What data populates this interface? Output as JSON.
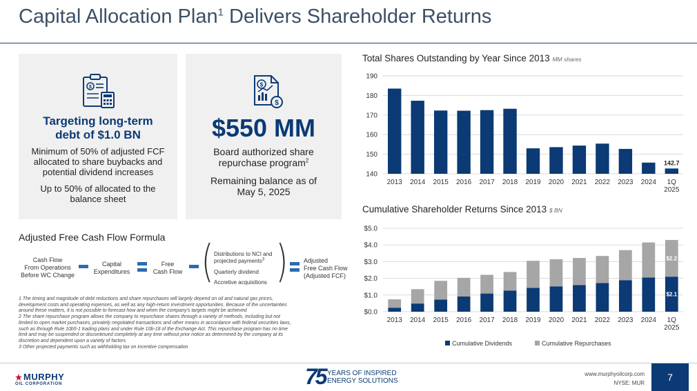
{
  "header": {
    "title_main": "Capital Allocation Plan",
    "title_sup": "1",
    "title_rest": " Delivers Shareholder Returns"
  },
  "left_panel": {
    "icon": "clipboard-calculator-icon",
    "heading_line1": "Targeting long-term",
    "heading_line2": "debt of $1.0 BN",
    "body1_line1": "Minimum of 50% of adjusted FCF",
    "body1_line2": "allocated to share buybacks and",
    "body1_line3": "potential dividend increases",
    "body2_line1": "Up to 50% of allocated to the",
    "body2_line2": "balance sheet"
  },
  "mid_panel": {
    "icon": "money-document-chart-icon",
    "amount": "$550 MM",
    "body1_line1": "Board authorized share",
    "body1_line2": "repurchase program",
    "body1_sup": "2",
    "body2_line1": "Remaining balance as of",
    "body2_line2": "May 5, 2025"
  },
  "formula": {
    "heading": "Adjusted Free Cash Flow Formula",
    "term1_line1": "Cash Flow",
    "term1_line2": "From Operations",
    "term1_line3": "Before WC Change",
    "term2_line1": "Capital",
    "term2_line2": "Expenditures",
    "term3_line1": "Free",
    "term3_line2": "Cash Flow",
    "paren_item1_line1": "Distributions to NCI and",
    "paren_item1_line2": "projected payments",
    "paren_item1_sup": "3",
    "paren_item2": "Quarterly dividend",
    "paren_item3": "Accretive acquisitions",
    "result_line1": "Adjusted",
    "result_line2": "Free Cash Flow",
    "result_line3": "(Adjusted FCF)",
    "accent_color": "#2b6cb0"
  },
  "footnotes": {
    "line1": "1 The timing and magnitude of debt reductions and share repurchases will largely depend on oil and natural gas prices,",
    "line2": "development costs and operating expenses, as well as any high-return investment opportunities. Because of the uncertainties",
    "line3": "around these matters, it is not possible to forecast how and when the company's targets might be achieved",
    "line4": "2 The share repurchase program allows the company to repurchase shares through a variety of methods, including but not",
    "line5": "limited to open market purchases, privately negotiated transactions and other means in accordance with federal securities laws,",
    "line6": "such as through Rule 10b5-1 trading plans and under Rule 10b-18 of the Exchange Act. This repurchase program has no time",
    "line7": "limit and may be suspended or discontinued completely at any time without prior notice as determined by the company at its",
    "line8": "discretion and dependent upon a variety of factors",
    "line9": "3 Other projected payments such as withholding tax on incentive compensation"
  },
  "chart_data": [
    {
      "type": "bar",
      "title": "Total Shares Outstanding by Year Since 2013",
      "unit": "MM shares",
      "categories": [
        "2013",
        "2014",
        "2015",
        "2016",
        "2017",
        "2018",
        "2019",
        "2020",
        "2021",
        "2022",
        "2023",
        "2024",
        "1Q 2025"
      ],
      "values": [
        183.5,
        177.3,
        172.3,
        172.2,
        172.5,
        173.2,
        153.0,
        153.6,
        154.4,
        155.4,
        152.7,
        145.7,
        142.7
      ],
      "data_labels": {
        "12": "142.7"
      },
      "ylim": [
        140,
        190
      ],
      "yticks": [
        "140",
        "150",
        "160",
        "170",
        "180",
        "190"
      ],
      "grid": true,
      "bar_color": "#0b3a75"
    },
    {
      "type": "bar",
      "stacked": true,
      "title": "Cumulative Shareholder Returns Since 2013",
      "unit": "$ BN",
      "categories": [
        "2013",
        "2014",
        "2015",
        "2016",
        "2017",
        "2018",
        "2019",
        "2020",
        "2021",
        "2022",
        "2023",
        "2024",
        "1Q 2025"
      ],
      "series": [
        {
          "name": "Cumulative Dividends",
          "color": "#0b3a75",
          "values": [
            0.24,
            0.49,
            0.73,
            0.91,
            1.09,
            1.26,
            1.43,
            1.52,
            1.6,
            1.72,
            1.89,
            2.05,
            2.1
          ]
        },
        {
          "name": "Cumulative Repurchases",
          "color": "#a6a6a6",
          "values": [
            0.5,
            0.86,
            1.12,
            1.12,
            1.12,
            1.12,
            1.62,
            1.62,
            1.62,
            1.62,
            1.8,
            2.1,
            2.2
          ]
        }
      ],
      "data_labels": {
        "dividends_12": "$2.1",
        "repurchases_12": "$2.2"
      },
      "ylim": [
        0,
        5
      ],
      "yticks": [
        "$0.0",
        "$1.0",
        "$2.0",
        "$3.0",
        "$4.0",
        "$5.0"
      ],
      "grid": true,
      "legend": "bottom"
    }
  ],
  "footer": {
    "logo_name": "MURPHY",
    "logo_sub": "OIL CORPORATION",
    "anniversary_number": "75",
    "anniversary_line1": "YEARS OF INSPIRED",
    "anniversary_line2": "ENERGY SOLUTIONS",
    "website": "www.murphyoilcorp.com",
    "ticker": "NYSE: MUR",
    "page_number": "7",
    "brand_color": "#0b3a75"
  }
}
